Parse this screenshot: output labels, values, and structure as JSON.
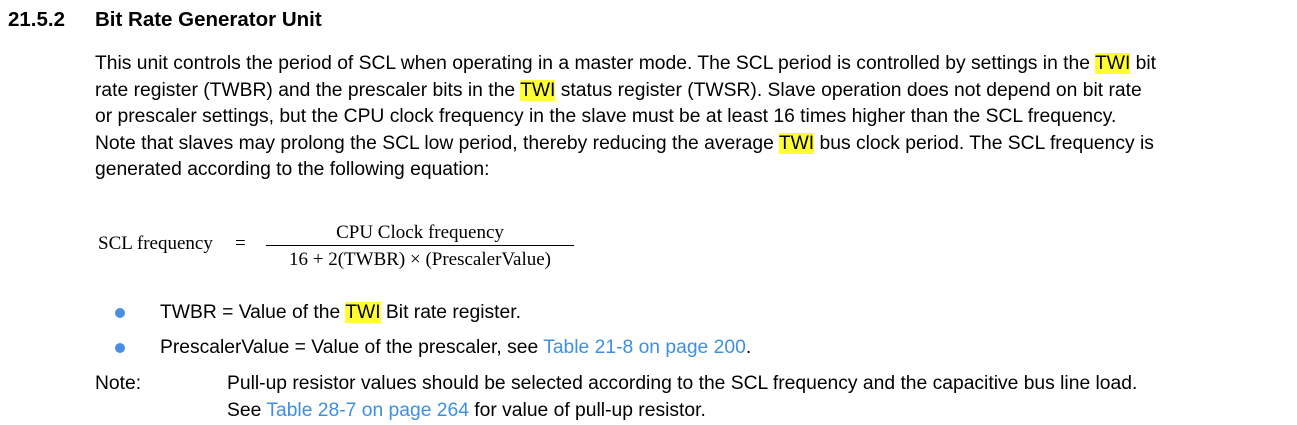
{
  "section": {
    "number": "21.5.2",
    "title": "Bit Rate Generator Unit"
  },
  "paragraph": {
    "l1a": "This unit controls the period of SCL when operating in a master mode. The SCL period is controlled by settings in the ",
    "l1hl": "TWI",
    "l1b": " bit",
    "l2a": "rate register (TWBR) and the prescaler bits in the ",
    "l2hl": "TWI",
    "l2b": " status register (TWSR). Slave operation does not depend on bit rate",
    "l3": "or prescaler settings, but the CPU clock frequency in the slave must be at least 16 times higher than the SCL frequency.",
    "l4a": "Note that slaves may prolong the SCL low period, thereby reducing the average ",
    "l4hl": "TWI",
    "l4b": " bus clock period. The SCL frequency is",
    "l5": "generated according to the following equation:"
  },
  "equation": {
    "lhs": "SCL frequency",
    "eq": "=",
    "numerator": "CPU Clock frequency",
    "denominator": "16 + 2(TWBR) × (PrescalerValue)"
  },
  "bullets": {
    "b1a": "TWBR = Value of the ",
    "b1hl": "TWI",
    "b1b": " Bit rate register.",
    "b2a": "PrescalerValue = Value of the prescaler, see ",
    "b2link": "Table 21-8 on page 200",
    "b2b": "."
  },
  "note": {
    "label": "Note:",
    "line1": "Pull-up resistor values should be selected according to the SCL frequency and the capacitive bus line load.",
    "line2a": "See ",
    "line2link": "Table 28-7 on page 264",
    "line2b": " for value of pull-up resistor."
  },
  "colors": {
    "highlight": "#ffff33",
    "link": "#3d8fe6",
    "bullet": "#4a90e2"
  }
}
